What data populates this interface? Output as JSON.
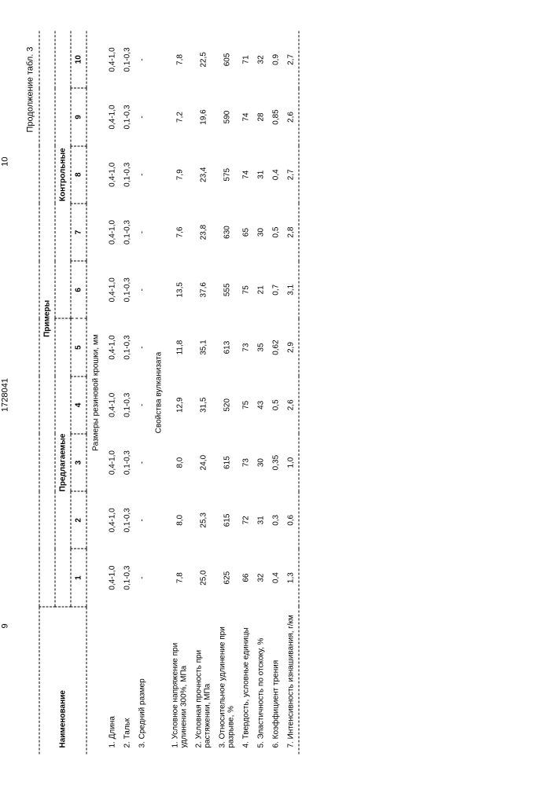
{
  "header": {
    "page_left": "9",
    "doc_number": "1728041",
    "page_right": "10",
    "continuation": "Продолжение табл. 3"
  },
  "table": {
    "col_label": "Наименование",
    "group_header": "Примеры",
    "group_left": "Предлагаемые",
    "group_right": "Контрольные",
    "cols": [
      "1",
      "2",
      "3",
      "4",
      "5",
      "6",
      "7",
      "8",
      "9",
      "10"
    ],
    "section1_title": "Размеры резиновой крошки, мм",
    "section1_rows": [
      {
        "label": "1. Длина",
        "vals": [
          "0,4-1,0",
          "0,4-1,0",
          "0,4-1,0",
          "0,4-1,0",
          "0,4-1,0",
          "0,4-1,0",
          "0,4-1,0",
          "0,4-1,0",
          "0,4-1,0",
          "0,4-1,0"
        ]
      },
      {
        "label": "2. Тальк",
        "vals": [
          "0,1-0,3",
          "0,1-0,3",
          "0,1-0,3",
          "0,1-0,3",
          "0,1-0,3",
          "0,1-0,3",
          "0,1-0,3",
          "0,1-0,3",
          "0,1-0,3",
          "0,1-0,3"
        ]
      },
      {
        "label": "3. Средний размер",
        "vals": [
          "-",
          "-",
          "-",
          "-",
          "-",
          "-",
          "-",
          "-",
          "-",
          "-"
        ]
      }
    ],
    "section2_title": "Свойства вулканизата",
    "section2_rows": [
      {
        "label": "1. Условное напряжение при удлинении 300%, МПа",
        "vals": [
          "7,8",
          "8,0",
          "8,0",
          "12,9",
          "11,8",
          "13,5",
          "7,6",
          "7,9",
          "7,2",
          "7,8"
        ]
      },
      {
        "label": "2. Условная прочность при растяжении, МПа",
        "vals": [
          "25,0",
          "25,3",
          "24,0",
          "31,5",
          "35,1",
          "37,6",
          "23,8",
          "23,4",
          "19,6",
          "22,5"
        ]
      },
      {
        "label": "3. Относительное удлинение при разрыве, %",
        "vals": [
          "625",
          "615",
          "615",
          "520",
          "613",
          "555",
          "630",
          "575",
          "590",
          "605"
        ]
      },
      {
        "label": "4. Твердость, условные единицы",
        "vals": [
          "66",
          "72",
          "73",
          "75",
          "73",
          "75",
          "65",
          "74",
          "74",
          "71"
        ]
      },
      {
        "label": "5. Эластичность по отскоку, %",
        "vals": [
          "32",
          "31",
          "30",
          "43",
          "35",
          "21",
          "30",
          "31",
          "28",
          "32"
        ]
      },
      {
        "label": "6. Коэффициент трения",
        "vals": [
          "0,4",
          "0,3",
          "0,35",
          "0,5",
          "0,62",
          "0,7",
          "0,5",
          "0,4",
          "0,85",
          "0,9"
        ]
      },
      {
        "label": "7. Интенсивность изнашивания, г/км",
        "vals": [
          "1,3",
          "0,6",
          "1,0",
          "2,6",
          "2,9",
          "3,1",
          "2,8",
          "2,7",
          "2,6",
          "2,7"
        ]
      }
    ]
  },
  "style": {
    "font_family": "Arial, sans-serif",
    "base_fontsize": 10,
    "header_fontsize": 11,
    "text_color": "#000000",
    "background_color": "#ffffff",
    "border_style": "dashed",
    "border_color": "#000000"
  }
}
